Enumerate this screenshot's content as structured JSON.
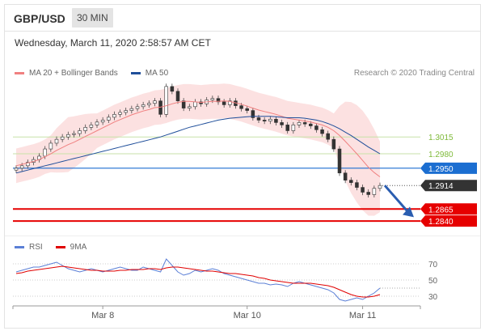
{
  "header": {
    "symbol": "GBP/USD",
    "timeframe": "30 MIN"
  },
  "datetime": "Wednesday, March 11, 2020 2:58:57 AM CET",
  "credit": "Research © 2020 Trading Central",
  "legend": {
    "price": [
      {
        "label": "MA 20 + Bollinger Bands",
        "color": "#f08080"
      },
      {
        "label": "MA 50",
        "color": "#1f4e9a"
      }
    ],
    "rsi": [
      {
        "label": "RSI",
        "color": "#5b7fd6"
      },
      {
        "label": "9MA",
        "color": "#e00000"
      }
    ]
  },
  "chart_data": [
    {
      "type": "candlestick",
      "title": "",
      "ylim": [
        1.282,
        1.314
      ],
      "price_levels": [
        {
          "value": 1.3015,
          "label": "1.3015",
          "kind": "resistance",
          "color": "#7fba3a",
          "line_color": "#c7e2a8"
        },
        {
          "value": 1.298,
          "label": "1.2980",
          "kind": "resistance",
          "color": "#7fba3a",
          "line_color": "#c7e2a8"
        },
        {
          "value": 1.295,
          "label": "1.2950",
          "kind": "pivot",
          "color": "#1b6ed1",
          "line_color": "#1b6ed1"
        },
        {
          "value": 1.2914,
          "label": "1.2914",
          "kind": "last",
          "color": "#333333",
          "line_color": "#555555"
        },
        {
          "value": 1.2865,
          "label": "1.2865",
          "kind": "support",
          "color": "#e60000",
          "line_color": "#e60000"
        },
        {
          "value": 1.284,
          "label": "1.2840",
          "kind": "support",
          "color": "#e60000",
          "line_color": "#e60000"
        }
      ],
      "x_ticks": [
        {
          "label": "Mar 8",
          "index": 15
        },
        {
          "label": "Mar 10",
          "index": 40
        },
        {
          "label": "Mar 11",
          "index": 60
        }
      ],
      "n_candles": 64,
      "close": [
        1.295,
        1.2955,
        1.2962,
        1.2968,
        1.2975,
        1.299,
        1.3002,
        1.301,
        1.3015,
        1.302,
        1.3022,
        1.3028,
        1.3035,
        1.304,
        1.3046,
        1.305,
        1.3056,
        1.3062,
        1.3066,
        1.307,
        1.3074,
        1.3078,
        1.3082,
        1.3085,
        1.309,
        1.3062,
        1.312,
        1.311,
        1.309,
        1.3075,
        1.3078,
        1.3088,
        1.3084,
        1.3092,
        1.3095,
        1.3088,
        1.3082,
        1.309,
        1.308,
        1.3074,
        1.307,
        1.3055,
        1.305,
        1.3048,
        1.3052,
        1.3045,
        1.304,
        1.3028,
        1.304,
        1.3045,
        1.3042,
        1.3038,
        1.303,
        1.3022,
        1.301,
        1.299,
        1.294,
        1.2925,
        1.292,
        1.291,
        1.29,
        1.2895,
        1.2908,
        1.2914
      ],
      "ma20": [
        1.2955,
        1.2958,
        1.2961,
        1.2964,
        1.2968,
        1.2974,
        1.298,
        1.2987,
        1.2993,
        1.2999,
        1.3004,
        1.301,
        1.3016,
        1.3022,
        1.3028,
        1.3034,
        1.304,
        1.3046,
        1.3051,
        1.3056,
        1.3061,
        1.3065,
        1.3069,
        1.3072,
        1.3076,
        1.3077,
        1.308,
        1.3084,
        1.3087,
        1.3089,
        1.3089,
        1.3088,
        1.3087,
        1.3088,
        1.3089,
        1.3089,
        1.309,
        1.3089,
        1.3086,
        1.3083,
        1.3079,
        1.3075,
        1.3071,
        1.3068,
        1.3065,
        1.3062,
        1.3058,
        1.3054,
        1.3052,
        1.305,
        1.3048,
        1.3046,
        1.3043,
        1.304,
        1.3035,
        1.3028,
        1.3018,
        1.3006,
        1.2993,
        1.298,
        1.2966,
        1.2952,
        1.2941,
        1.2932
      ],
      "ma50": [
        1.294,
        1.2943,
        1.2946,
        1.2949,
        1.2952,
        1.2955,
        1.2958,
        1.2961,
        1.2964,
        1.2967,
        1.297,
        1.2973,
        1.2976,
        1.2979,
        1.2982,
        1.2985,
        1.2988,
        1.2991,
        1.2994,
        1.2997,
        1.3,
        1.3003,
        1.3006,
        1.3009,
        1.3012,
        1.3015,
        1.3019,
        1.3023,
        1.3027,
        1.3031,
        1.3035,
        1.3038,
        1.3041,
        1.3044,
        1.3047,
        1.305,
        1.3052,
        1.3054,
        1.3055,
        1.3056,
        1.3057,
        1.3058,
        1.3058,
        1.3058,
        1.3058,
        1.3057,
        1.3056,
        1.3055,
        1.3055,
        1.3055,
        1.3054,
        1.3052,
        1.305,
        1.3047,
        1.3043,
        1.3038,
        1.3032,
        1.3025,
        1.3018,
        1.301,
        1.3002,
        1.2994,
        1.2987,
        1.298
      ]
    },
    {
      "type": "line",
      "title": "",
      "ylim": [
        20,
        80
      ],
      "y_ticks": [
        70,
        50,
        30
      ],
      "series": [
        {
          "name": "RSI",
          "values": [
            60,
            62,
            64,
            66,
            66,
            68,
            70,
            72,
            68,
            64,
            62,
            60,
            62,
            64,
            62,
            60,
            62,
            64,
            66,
            64,
            62,
            62,
            66,
            64,
            62,
            60,
            76,
            68,
            60,
            56,
            58,
            62,
            60,
            62,
            64,
            62,
            58,
            56,
            54,
            52,
            50,
            48,
            46,
            46,
            44,
            45,
            44,
            42,
            46,
            48,
            46,
            44,
            42,
            40,
            38,
            34,
            26,
            24,
            26,
            28,
            26,
            30,
            34,
            40
          ]
        },
        {
          "name": "9MA",
          "values": [
            58,
            59,
            61,
            62,
            63,
            64,
            65,
            66,
            67,
            66,
            65,
            64,
            63,
            62,
            62,
            61,
            61,
            61,
            62,
            62,
            63,
            63,
            63,
            64,
            64,
            63,
            65,
            66,
            66,
            65,
            64,
            63,
            62,
            61,
            61,
            60,
            59,
            58,
            58,
            57,
            56,
            55,
            53,
            52,
            50,
            49,
            48,
            47,
            46,
            46,
            46,
            46,
            45,
            44,
            43,
            41,
            38,
            35,
            32,
            30,
            29,
            29,
            30,
            32
          ]
        }
      ],
      "guides": [
        70,
        50,
        30
      ]
    }
  ]
}
